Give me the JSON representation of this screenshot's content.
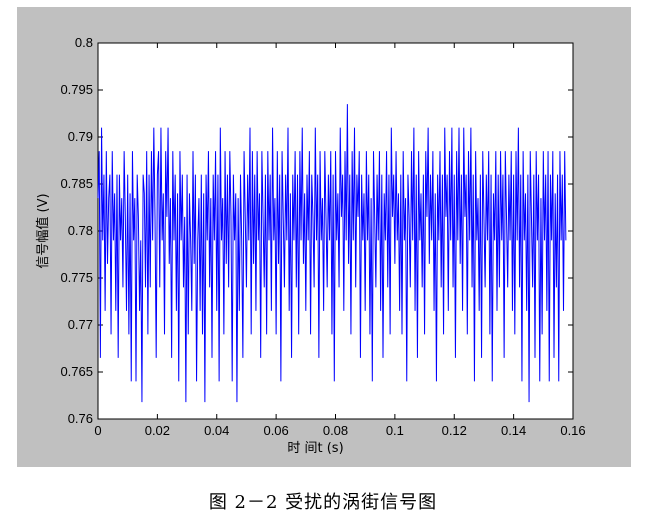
{
  "caption": "图 2－2 受扰的涡街信号图",
  "chart_data": {
    "type": "line",
    "title": "",
    "xlabel": "时 间t  (s)",
    "ylabel": "信号幅值  (V)",
    "xlim": [
      0,
      0.16
    ],
    "ylim": [
      0.76,
      0.8
    ],
    "x_ticks": [
      0,
      0.02,
      0.04,
      0.06,
      0.08,
      0.1,
      0.12,
      0.14,
      0.16
    ],
    "x_tick_labels": [
      "0",
      "0.02",
      "0.04",
      "0.06",
      "0.08",
      "0.1",
      "0.12",
      "0.14",
      "0.16"
    ],
    "y_ticks": [
      0.76,
      0.765,
      0.77,
      0.775,
      0.78,
      0.785,
      0.79,
      0.795,
      0.8
    ],
    "y_tick_labels": [
      "0.76",
      "0.765",
      "0.77",
      "0.775",
      "0.78",
      "0.785",
      "0.79",
      "0.795",
      "0.8"
    ],
    "grid": false,
    "series": [
      {
        "color": "#0000ff",
        "x_start": 0,
        "x_step": 0.0004,
        "values": [
          0.7835,
          0.7885,
          0.7665,
          0.791,
          0.779,
          0.786,
          0.7715,
          0.7885,
          0.7765,
          0.7835,
          0.786,
          0.769,
          0.7885,
          0.779,
          0.784,
          0.7715,
          0.786,
          0.7665,
          0.786,
          0.779,
          0.7835,
          0.774,
          0.7885,
          0.7815,
          0.7715,
          0.786,
          0.769,
          0.784,
          0.764,
          0.7885,
          0.779,
          0.7835,
          0.764,
          0.786,
          0.7815,
          0.7715,
          0.779,
          0.7618,
          0.786,
          0.784,
          0.774,
          0.7885,
          0.769,
          0.786,
          0.774,
          0.7885,
          0.779,
          0.791,
          0.7815,
          0.7665,
          0.786,
          0.7885,
          0.774,
          0.791,
          0.779,
          0.784,
          0.769,
          0.7885,
          0.7815,
          0.791,
          0.7765,
          0.7835,
          0.7665,
          0.7885,
          0.779,
          0.786,
          0.7715,
          0.784,
          0.764,
          0.7885,
          0.779,
          0.786,
          0.774,
          0.7815,
          0.7618,
          0.786,
          0.769,
          0.784,
          0.779,
          0.7715,
          0.7885,
          0.7765,
          0.786,
          0.764,
          0.779,
          0.7835,
          0.7715,
          0.786,
          0.769,
          0.784,
          0.7618,
          0.786,
          0.779,
          0.7885,
          0.774,
          0.7835,
          0.7665,
          0.786,
          0.779,
          0.7885,
          0.7715,
          0.786,
          0.764,
          0.791,
          0.779,
          0.7835,
          0.769,
          0.7885,
          0.7765,
          0.786,
          0.774,
          0.7885,
          0.7815,
          0.764,
          0.786,
          0.779,
          0.784,
          0.7618,
          0.7835,
          0.7715,
          0.786,
          0.779,
          0.7665,
          0.7885,
          0.7815,
          0.774,
          0.786,
          0.779,
          0.791,
          0.769,
          0.7885,
          0.7765,
          0.786,
          0.7715,
          0.7885,
          0.779,
          0.784,
          0.7665,
          0.7885,
          0.7815,
          0.774,
          0.786,
          0.769,
          0.7885,
          0.779,
          0.786,
          0.7715,
          0.791,
          0.779,
          0.7835,
          0.769,
          0.7885,
          0.7765,
          0.786,
          0.764,
          0.7885,
          0.7815,
          0.774,
          0.786,
          0.779,
          0.791,
          0.7715,
          0.784,
          0.7665,
          0.786,
          0.779,
          0.7885,
          0.774,
          0.786,
          0.769,
          0.7885,
          0.779,
          0.791,
          0.7765,
          0.784,
          0.7715,
          0.786,
          0.779,
          0.7885,
          0.769,
          0.786,
          0.7815,
          0.774,
          0.791,
          0.779,
          0.786,
          0.7665,
          0.7885,
          0.779,
          0.7835,
          0.7715,
          0.7885,
          0.7815,
          0.774,
          0.786,
          0.779,
          0.7885,
          0.769,
          0.786,
          0.764,
          0.7885,
          0.779,
          0.784,
          0.774,
          0.791,
          0.7815,
          0.786,
          0.7715,
          0.7885,
          0.779,
          0.7935,
          0.7765,
          0.786,
          0.769,
          0.7885,
          0.779,
          0.791,
          0.774,
          0.786,
          0.7815,
          0.7885,
          0.7665,
          0.786,
          0.779,
          0.784,
          0.7715,
          0.7885,
          0.779,
          0.786,
          0.769,
          0.7835,
          0.764,
          0.7885,
          0.7815,
          0.774,
          0.786,
          0.779,
          0.7885,
          0.7715,
          0.786,
          0.7665,
          0.784,
          0.779,
          0.7885,
          0.774,
          0.786,
          0.769,
          0.791,
          0.7815,
          0.786,
          0.7765,
          0.7885,
          0.779,
          0.784,
          0.7715,
          0.786,
          0.769,
          0.7885,
          0.779,
          0.7835,
          0.764,
          0.786,
          0.7815,
          0.774,
          0.7885,
          0.779,
          0.791,
          0.7715,
          0.786,
          0.7665,
          0.7885,
          0.779,
          0.784,
          0.774,
          0.786,
          0.769,
          0.7885,
          0.7815,
          0.791,
          0.7765,
          0.786,
          0.779,
          0.7885,
          0.7715,
          0.784,
          0.764,
          0.786,
          0.779,
          0.7885,
          0.774,
          0.786,
          0.769,
          0.791,
          0.7815,
          0.786,
          0.7715,
          0.7885,
          0.779,
          0.791,
          0.774,
          0.786,
          0.7665,
          0.7885,
          0.779,
          0.791,
          0.7765,
          0.786,
          0.7715,
          0.791,
          0.7815,
          0.786,
          0.769,
          0.7885,
          0.779,
          0.791,
          0.774,
          0.786,
          0.764,
          0.7885,
          0.779,
          0.7835,
          0.7715,
          0.786,
          0.7665,
          0.7885,
          0.7815,
          0.774,
          0.786,
          0.779,
          0.7885,
          0.769,
          0.786,
          0.764,
          0.784,
          0.779,
          0.7885,
          0.7715,
          0.786,
          0.774,
          0.7885,
          0.779,
          0.786,
          0.7665,
          0.7885,
          0.7815,
          0.774,
          0.786,
          0.779,
          0.7885,
          0.7715,
          0.786,
          0.769,
          0.7885,
          0.779,
          0.791,
          0.774,
          0.786,
          0.764,
          0.7885,
          0.779,
          0.784,
          0.7715,
          0.786,
          0.7618,
          0.7885,
          0.7815,
          0.774,
          0.786,
          0.7665,
          0.7885,
          0.779,
          0.786,
          0.764,
          0.7835,
          0.769,
          0.7885,
          0.779,
          0.786,
          0.7715,
          0.7885,
          0.764,
          0.786,
          0.779,
          0.7885,
          0.7665,
          0.784,
          0.774,
          0.786,
          0.764,
          0.7885,
          0.779,
          0.786,
          0.7715,
          0.7885,
          0.779
        ]
      }
    ]
  }
}
